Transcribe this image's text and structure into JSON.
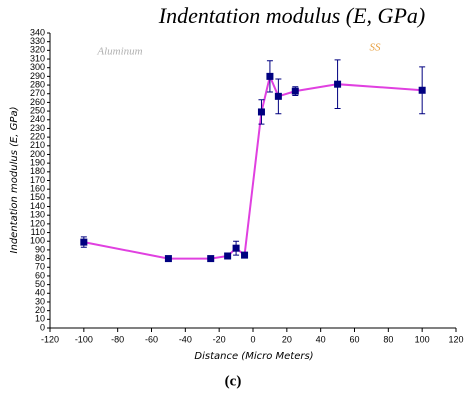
{
  "chart_data": {
    "type": "line",
    "title": "Indentation modulus (E, GPa)",
    "x_label": "Distance (Micro Meters)",
    "y_label": "Indentation modulus (E, GPa)",
    "caption": "(c)",
    "annotations": [
      {
        "text": "Aluminum",
        "color": "#b0b0b0"
      },
      {
        "text": "SS",
        "color": "#e8a040"
      }
    ],
    "x": [
      -100,
      -50,
      -25,
      -15,
      -10,
      -5,
      5,
      10,
      15,
      25,
      50,
      100
    ],
    "series": [
      {
        "name": "Indentation modulus",
        "line_color": "#e040e0",
        "color": "#000080",
        "values": [
          99,
          80,
          80,
          83,
          92,
          84,
          249,
          290,
          267,
          273,
          281,
          274
        ],
        "errors": [
          6,
          1,
          3,
          3,
          8,
          3,
          14,
          18,
          20,
          5,
          28,
          27
        ]
      }
    ],
    "xlim": [
      -120,
      120
    ],
    "xticks": [
      -120,
      -100,
      -80,
      -60,
      -40,
      -20,
      0,
      20,
      40,
      60,
      80,
      100,
      120
    ],
    "ylim": [
      0,
      340
    ],
    "yticks": [
      0,
      10,
      20,
      30,
      40,
      50,
      60,
      70,
      80,
      90,
      100,
      110,
      120,
      130,
      140,
      150,
      160,
      170,
      180,
      190,
      200,
      210,
      220,
      230,
      240,
      250,
      260,
      270,
      280,
      290,
      300,
      310,
      320,
      330,
      340
    ],
    "grid": false
  }
}
